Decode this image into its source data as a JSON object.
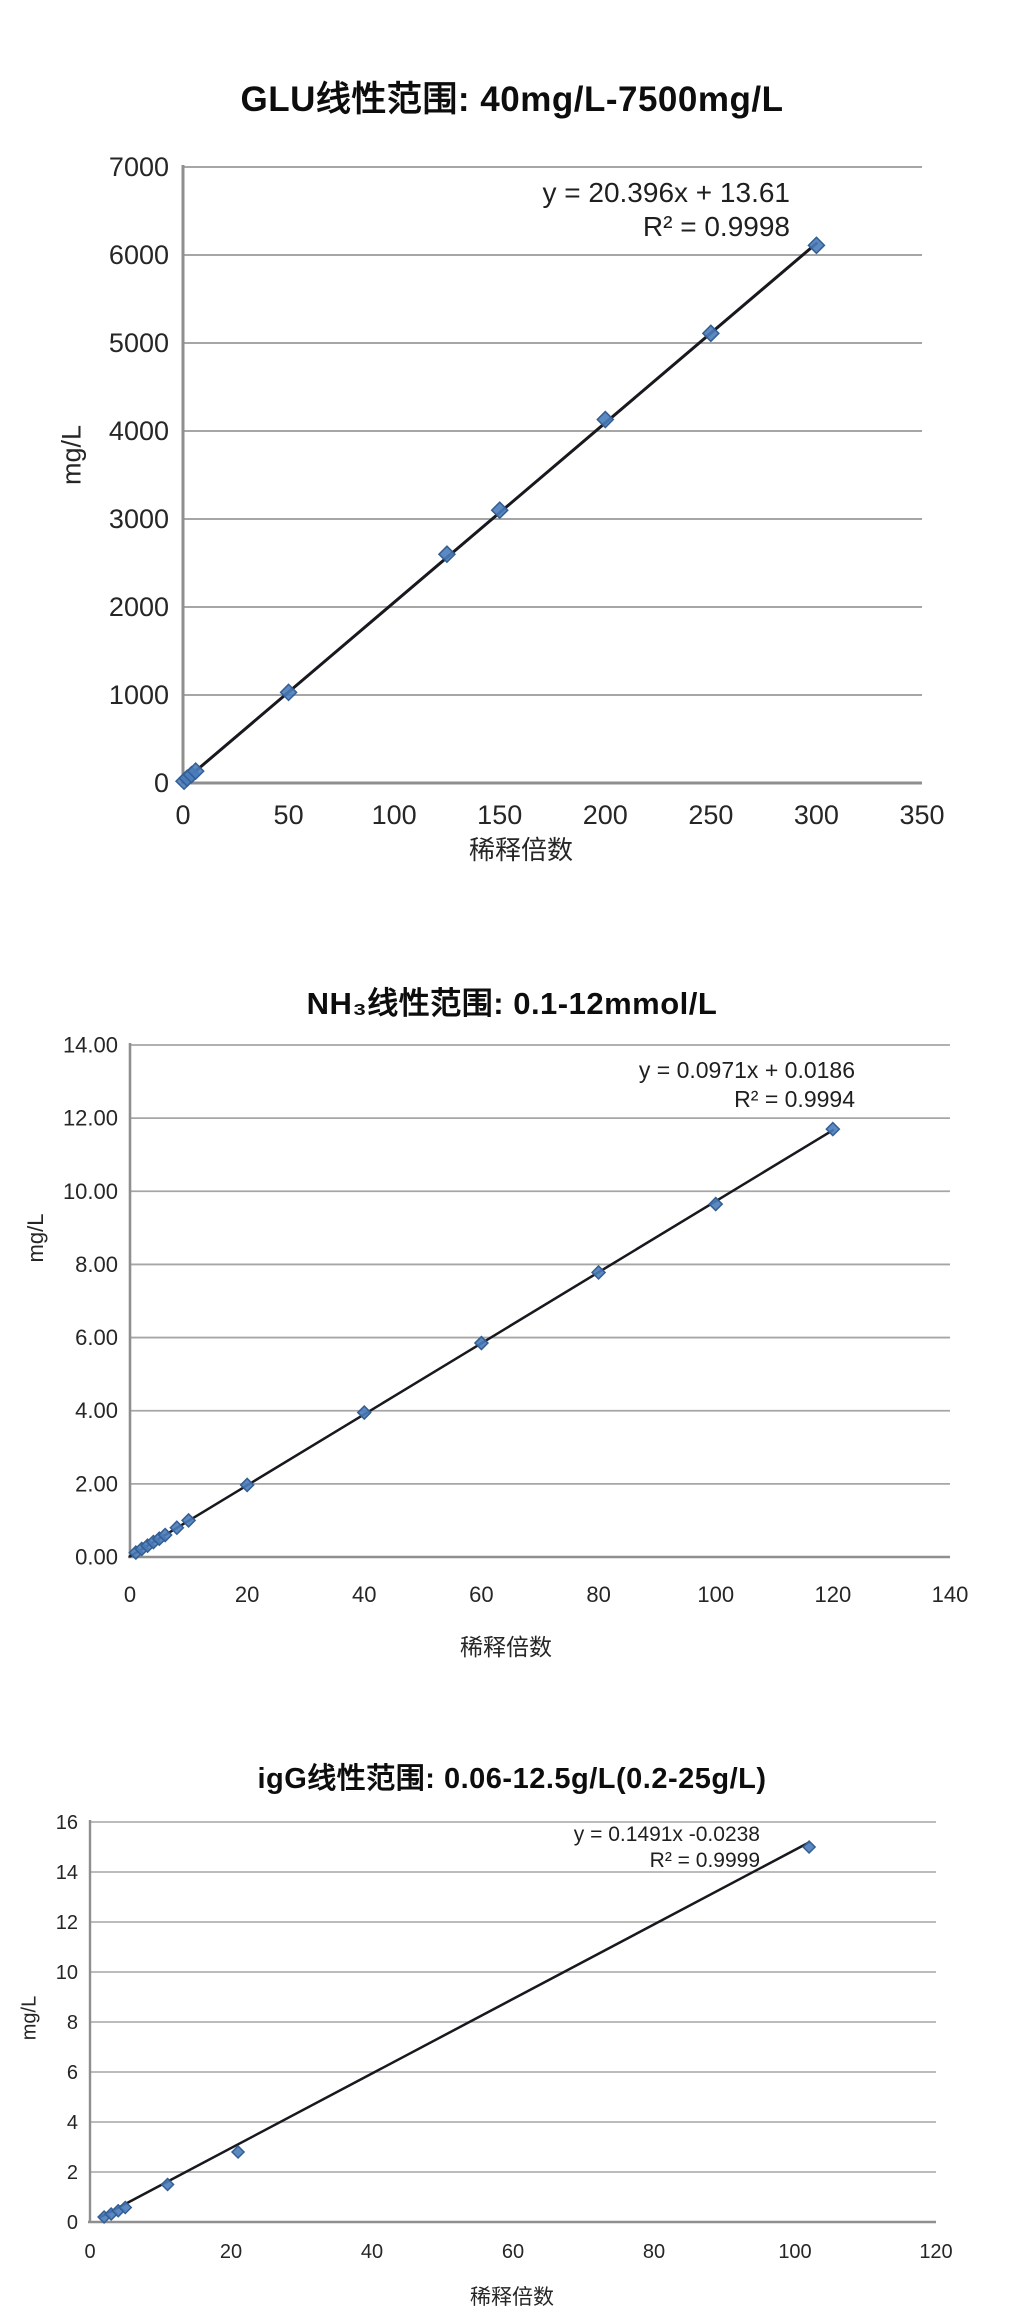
{
  "colors": {
    "background": "#ffffff",
    "marker_fill": "#4a7cba",
    "marker_stroke": "#335e94",
    "trend_line": "#17191e",
    "gridline": "#a6a6a6",
    "axis_line": "#8f8f8f",
    "tick_text": "#262626",
    "title_text": "#0d0d0d"
  },
  "chart_data": [
    {
      "type": "scatter",
      "title": "GLU线性范围: 40mg/L-7500mg/L",
      "xlabel": "稀释倍数",
      "ylabel": "mg/L",
      "equation": "y = 20.396x + 13.61",
      "r_squared": "R² = 0.9998",
      "xlim": [
        0,
        350
      ],
      "ylim": [
        0,
        7000
      ],
      "xticks": [
        0,
        50,
        100,
        150,
        200,
        250,
        300,
        350
      ],
      "yticks": [
        0,
        1000,
        2000,
        3000,
        4000,
        5000,
        6000,
        7000
      ],
      "ytick_labels": [
        "0",
        "1000",
        "2000",
        "3000",
        "4000",
        "5000",
        "6000",
        "7000"
      ],
      "grid": "horizontal",
      "legend": "none",
      "points": [
        [
          0.5,
          20
        ],
        [
          2,
          55
        ],
        [
          4,
          95
        ],
        [
          6,
          135
        ],
        [
          50,
          1030
        ],
        [
          125,
          2600
        ],
        [
          150,
          3100
        ],
        [
          200,
          4130
        ],
        [
          250,
          5110
        ],
        [
          300,
          6110
        ]
      ],
      "trendline": {
        "slope": 20.396,
        "intercept": 13.61,
        "x_start": 0,
        "x_end": 300
      }
    },
    {
      "type": "scatter",
      "title": "NH₃线性范围: 0.1-12mmol/L",
      "xlabel": "稀释倍数",
      "ylabel": "mg/L",
      "equation": "y = 0.0971x + 0.0186",
      "r_squared": "R² = 0.9994",
      "xlim": [
        0,
        140
      ],
      "ylim": [
        0,
        14
      ],
      "xticks": [
        0,
        20,
        40,
        60,
        80,
        100,
        120,
        140
      ],
      "yticks": [
        0,
        2,
        4,
        6,
        8,
        10,
        12,
        14
      ],
      "ytick_labels": [
        "0.00",
        "2.00",
        "4.00",
        "6.00",
        "8.00",
        "10.00",
        "12.00",
        "14.00"
      ],
      "grid": "horizontal",
      "legend": "none",
      "points": [
        [
          1,
          0.12
        ],
        [
          2,
          0.22
        ],
        [
          3,
          0.31
        ],
        [
          4,
          0.41
        ],
        [
          5,
          0.5
        ],
        [
          6,
          0.6
        ],
        [
          8,
          0.8
        ],
        [
          10,
          1.0
        ],
        [
          20,
          1.97
        ],
        [
          40,
          3.95
        ],
        [
          60,
          5.85
        ],
        [
          80,
          7.78
        ],
        [
          100,
          9.65
        ],
        [
          120,
          11.7
        ]
      ],
      "trendline": {
        "slope": 0.0971,
        "intercept": 0.0186,
        "x_start": 0,
        "x_end": 120
      }
    },
    {
      "type": "scatter",
      "title": "igG线性范围: 0.06-12.5g/L(0.2-25g/L)",
      "xlabel": "稀释倍数",
      "ylabel": "mg/L",
      "equation": "y = 0.1491x -0.0238",
      "r_squared": "R² = 0.9999",
      "xlim": [
        0,
        120
      ],
      "ylim": [
        0,
        16
      ],
      "xticks": [
        0,
        20,
        40,
        60,
        80,
        100,
        120
      ],
      "yticks": [
        0,
        2,
        4,
        6,
        8,
        10,
        12,
        14,
        16
      ],
      "ytick_labels": [
        "0",
        "2",
        "4",
        "6",
        "8",
        "10",
        "12",
        "14",
        "16"
      ],
      "grid": "horizontal",
      "legend": "none",
      "points": [
        [
          2,
          0.2
        ],
        [
          3,
          0.32
        ],
        [
          4,
          0.45
        ],
        [
          5,
          0.58
        ],
        [
          11,
          1.5
        ],
        [
          21,
          2.8
        ],
        [
          102,
          15.0
        ]
      ],
      "trendline": {
        "slope": 0.1491,
        "intercept": -0.0238,
        "x_start": 1.5,
        "x_end": 102
      }
    }
  ]
}
